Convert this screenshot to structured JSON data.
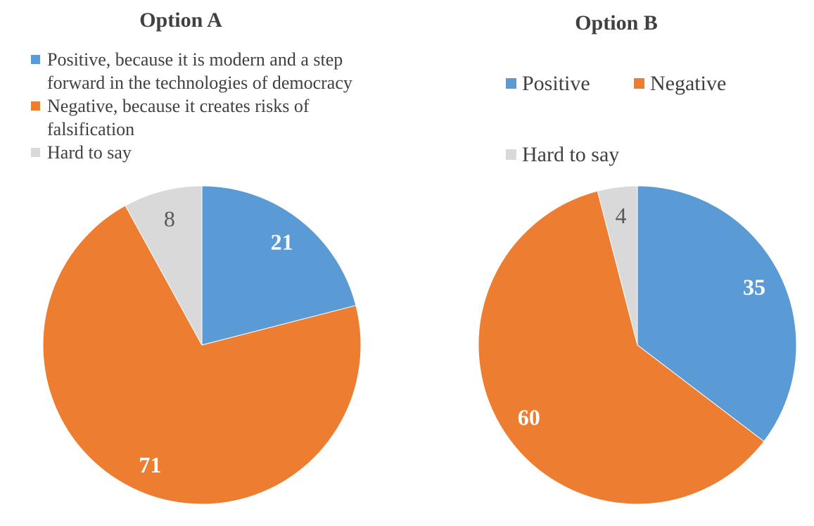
{
  "background": "#FFFFFF",
  "text_colors": {
    "title": "#404040",
    "legend": "#404040",
    "light_slice_label": "#595959"
  },
  "chart_data": [
    {
      "type": "pie",
      "title": "Option A",
      "legend_position": "top-left",
      "data_labels": "inside",
      "start_angle_deg": 0,
      "direction": "clockwise",
      "slices": [
        {
          "label": "Positive, because it is modern and a step forward in the technologies of democracy",
          "value": 21,
          "color": "#5B9BD5",
          "label_color": "#FFFFFF",
          "label_bold": true
        },
        {
          "label": "Negative, because it creates risks of falsification",
          "value": 71,
          "color": "#ED7D31",
          "label_color": "#FFFFFF",
          "label_bold": true
        },
        {
          "label": "Hard to say",
          "value": 8,
          "color": "#D9D9D9",
          "label_color": "#595959",
          "label_bold": false
        }
      ]
    },
    {
      "type": "pie",
      "title": "Option B",
      "legend_position": "top-two-column",
      "data_labels": "inside",
      "start_angle_deg": 0,
      "direction": "clockwise",
      "slices": [
        {
          "label": "Positive",
          "value": 35,
          "color": "#5B9BD5",
          "label_color": "#FFFFFF",
          "label_bold": true
        },
        {
          "label": "Negative",
          "value": 60,
          "color": "#ED7D31",
          "label_color": "#FFFFFF",
          "label_bold": true
        },
        {
          "label": "Hard to say",
          "value": 4,
          "color": "#D9D9D9",
          "label_color": "#595959",
          "label_bold": false
        }
      ]
    }
  ]
}
